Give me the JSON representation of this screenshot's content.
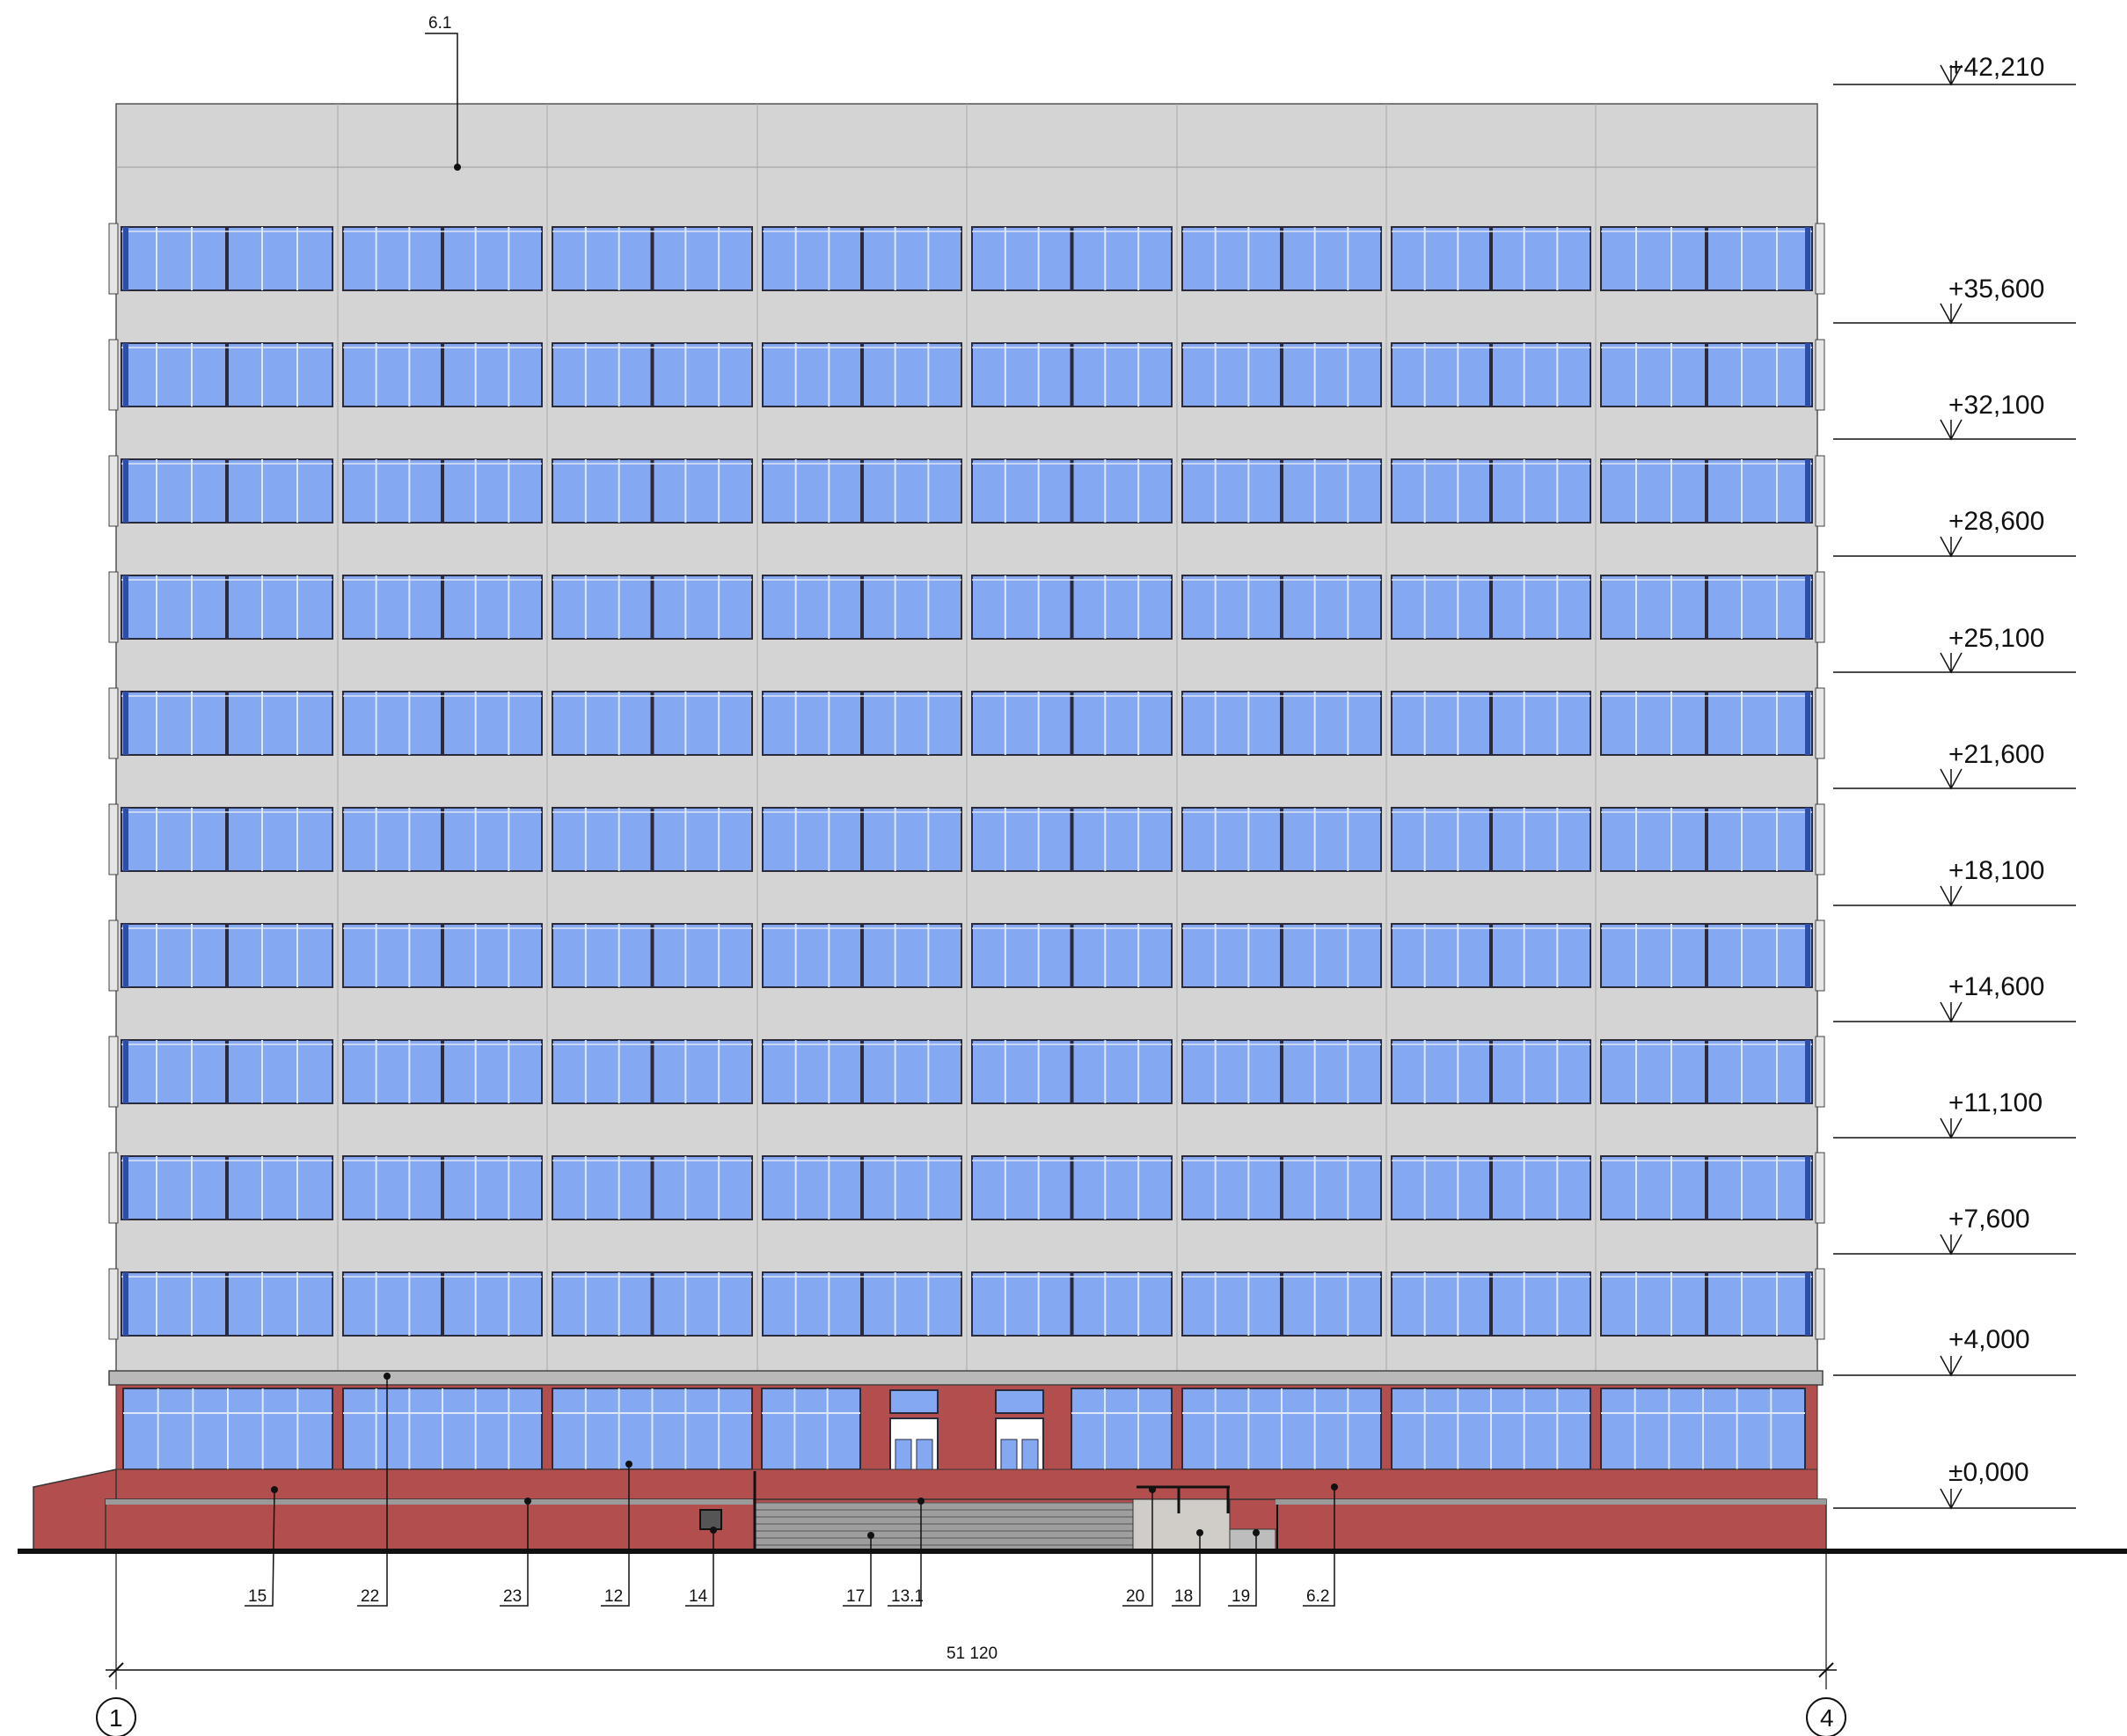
{
  "colors": {
    "facade": "#d4d4d4",
    "glass": "#84a9f2",
    "frame": "#2a2a3a",
    "base": "#b24e4e",
    "cornice": "#b9b9b9",
    "line": "#111111"
  },
  "levels": [
    "+42,210",
    "+35,600",
    "+32,100",
    "+28,600",
    "+25,100",
    "+21,600",
    "+18,100",
    "+14,600",
    "+11,100",
    "+7,600",
    "+4,000",
    "±0,000"
  ],
  "top_label": "6.1",
  "bottom_labels": [
    "15",
    "22",
    "23",
    "12",
    "14",
    "17",
    "13.1",
    "20",
    "18",
    "19",
    "6.2"
  ],
  "dimension": "51 120",
  "axes": [
    "1",
    "4"
  ]
}
